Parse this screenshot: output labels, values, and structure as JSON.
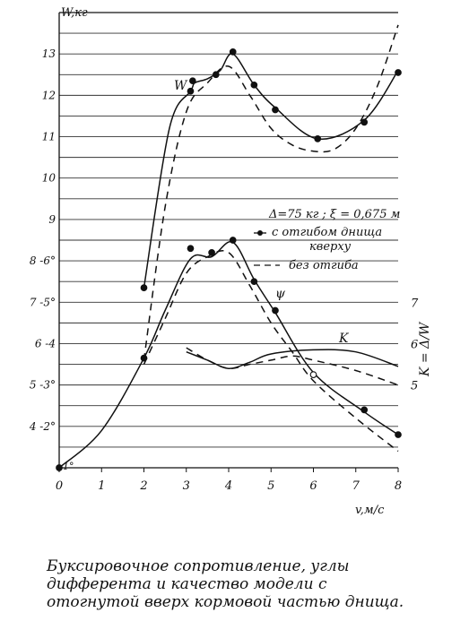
{
  "chart_data": {
    "type": "line",
    "xlabel": "v,м/с",
    "ylabel_left": "W,кг",
    "ylabel_right": "K = Δ/W",
    "xlim": [
      0,
      8
    ],
    "ylim": [
      3,
      14
    ],
    "x_ticks": [
      "0",
      "1",
      "2",
      "3",
      "4",
      "5",
      "6",
      "7",
      "8"
    ],
    "y_ticks_left": [
      {
        "y": 4,
        "label": "4 -2°"
      },
      {
        "y": 5,
        "label": "5 -3°"
      },
      {
        "y": 6,
        "label": "6 -4"
      },
      {
        "y": 7,
        "label": "7 -5°"
      },
      {
        "y": 8,
        "label": "8 -6°"
      },
      {
        "y": 9,
        "label": "9"
      },
      {
        "y": 10,
        "label": "10"
      },
      {
        "y": 11,
        "label": "11"
      },
      {
        "y": 12,
        "label": "12"
      },
      {
        "y": 13,
        "label": "13"
      }
    ],
    "y0_label": "1°",
    "y_ticks_right": [
      {
        "y": 5,
        "label": "5"
      },
      {
        "y": 6,
        "label": "6"
      },
      {
        "y": 7,
        "label": "7"
      }
    ],
    "curve_labels": [
      "W",
      "ψ",
      "K"
    ],
    "legend": {
      "condition": "Δ=75 кг ; ξ = 0,675 м",
      "solid_line1": "с отгибом днища",
      "solid_line2": "кверху",
      "dashed": "без отгиба"
    },
    "series": [
      {
        "curve": "W",
        "style": "solid",
        "points": [
          [
            2.0,
            7.35
          ],
          [
            2.6,
            11.2
          ],
          [
            3.1,
            12.1
          ],
          [
            3.2,
            12.3
          ],
          [
            3.5,
            12.4
          ],
          [
            3.8,
            12.6
          ],
          [
            4.1,
            13.0
          ],
          [
            4.6,
            12.25
          ],
          [
            5.1,
            11.7
          ],
          [
            6.1,
            10.95
          ],
          [
            7.2,
            11.4
          ],
          [
            8.0,
            12.6
          ]
        ]
      },
      {
        "curve": "W",
        "style": "dashed",
        "points": [
          [
            2.0,
            5.6
          ],
          [
            2.5,
            9.3
          ],
          [
            3.0,
            11.6
          ],
          [
            3.5,
            12.3
          ],
          [
            4.0,
            12.7
          ],
          [
            4.5,
            12.0
          ],
          [
            5.0,
            11.2
          ],
          [
            5.5,
            10.8
          ],
          [
            6.0,
            10.65
          ],
          [
            6.5,
            10.7
          ],
          [
            7.0,
            11.2
          ],
          [
            7.5,
            12.2
          ],
          [
            8.0,
            13.7
          ]
        ]
      },
      {
        "curve": "ψ",
        "style": "solid",
        "points": [
          [
            0.0,
            3.0
          ],
          [
            1.0,
            3.9
          ],
          [
            2.0,
            5.65
          ],
          [
            2.5,
            6.8
          ],
          [
            3.1,
            8.05
          ],
          [
            3.6,
            8.1
          ],
          [
            4.1,
            8.45
          ],
          [
            4.6,
            7.55
          ],
          [
            5.1,
            6.75
          ],
          [
            6.0,
            5.3
          ],
          [
            7.2,
            4.35
          ],
          [
            8.0,
            3.8
          ]
        ]
      },
      {
        "curve": "ψ",
        "style": "dashed",
        "points": [
          [
            2.0,
            5.5
          ],
          [
            2.5,
            6.6
          ],
          [
            3.0,
            7.7
          ],
          [
            3.5,
            8.1
          ],
          [
            4.0,
            8.2
          ],
          [
            4.5,
            7.4
          ],
          [
            5.0,
            6.5
          ],
          [
            5.5,
            5.8
          ],
          [
            6.0,
            5.1
          ],
          [
            7.0,
            4.2
          ],
          [
            8.0,
            3.4
          ]
        ]
      },
      {
        "curve": "K",
        "style": "solid",
        "points": [
          [
            3.0,
            5.8
          ],
          [
            3.5,
            5.6
          ],
          [
            4.0,
            5.4
          ],
          [
            4.5,
            5.55
          ],
          [
            5.0,
            5.75
          ],
          [
            6.0,
            5.85
          ],
          [
            7.0,
            5.8
          ],
          [
            8.0,
            5.45
          ]
        ]
      },
      {
        "curve": "K",
        "style": "dashed",
        "points": [
          [
            3.0,
            5.9
          ],
          [
            3.5,
            5.6
          ],
          [
            4.0,
            5.4
          ],
          [
            4.5,
            5.5
          ],
          [
            5.0,
            5.6
          ],
          [
            5.5,
            5.7
          ],
          [
            6.0,
            5.6
          ],
          [
            7.0,
            5.35
          ],
          [
            8.0,
            5.0
          ]
        ]
      }
    ],
    "markers": [
      {
        "x": 2.0,
        "y": 7.35,
        "style": "filled"
      },
      {
        "x": 3.1,
        "y": 12.1,
        "style": "filled"
      },
      {
        "x": 3.15,
        "y": 12.35,
        "style": "filled"
      },
      {
        "x": 3.7,
        "y": 12.5,
        "style": "filled"
      },
      {
        "x": 4.1,
        "y": 13.05,
        "style": "filled"
      },
      {
        "x": 4.6,
        "y": 12.25,
        "style": "filled"
      },
      {
        "x": 5.1,
        "y": 11.65,
        "style": "filled"
      },
      {
        "x": 6.1,
        "y": 10.95,
        "style": "filled"
      },
      {
        "x": 7.2,
        "y": 11.35,
        "style": "filled"
      },
      {
        "x": 8.0,
        "y": 12.55,
        "style": "filled"
      },
      {
        "x": 2.0,
        "y": 5.65,
        "style": "filled"
      },
      {
        "x": 3.1,
        "y": 8.3,
        "style": "filled"
      },
      {
        "x": 3.6,
        "y": 8.2,
        "style": "filled"
      },
      {
        "x": 4.1,
        "y": 8.5,
        "style": "filled"
      },
      {
        "x": 4.6,
        "y": 7.5,
        "style": "filled"
      },
      {
        "x": 5.1,
        "y": 6.8,
        "style": "filled"
      },
      {
        "x": 7.2,
        "y": 4.4,
        "style": "filled"
      },
      {
        "x": 8.0,
        "y": 3.8,
        "style": "filled"
      },
      {
        "x": 0.0,
        "y": 3.0,
        "style": "filled"
      },
      {
        "x": 6.0,
        "y": 5.25,
        "style": "open"
      }
    ]
  },
  "caption": "Буксировочное сопротивление, углы дифферента и качество модели с отогнутой вверх кормовой частью днища."
}
